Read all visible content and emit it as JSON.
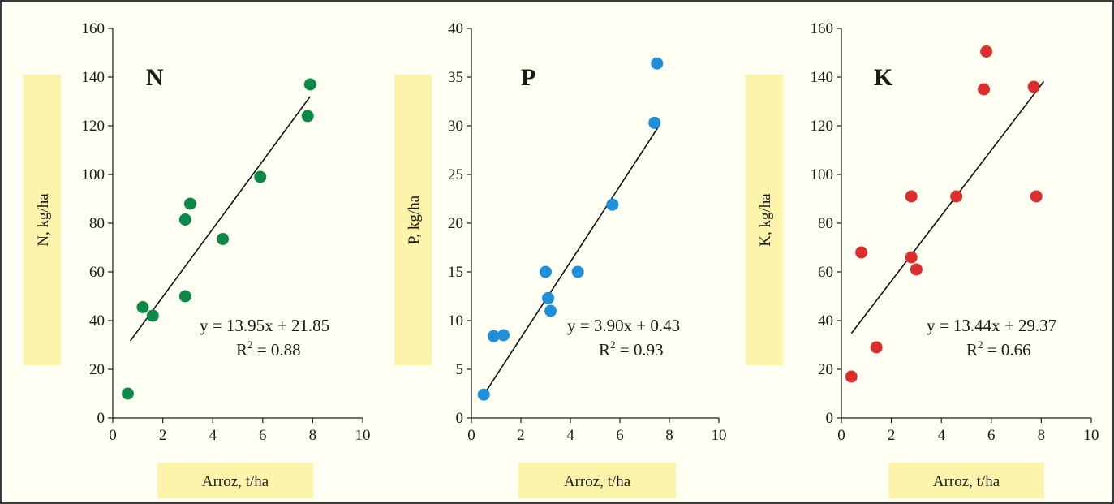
{
  "chart_data": [
    {
      "type": "scatter",
      "letter": "N",
      "xlabel": "Arroz, t/ha",
      "ylabel": "N, kg/ha",
      "xlim": [
        0,
        10
      ],
      "ylim": [
        0,
        160
      ],
      "xticks": [
        "0",
        "2",
        "4",
        "6",
        "8",
        "10"
      ],
      "yticks": [
        "0",
        "20",
        "40",
        "60",
        "80",
        "100",
        "120",
        "140",
        "160"
      ],
      "color": "#0a8a46",
      "points": [
        {
          "x": 0.6,
          "y": 10
        },
        {
          "x": 1.2,
          "y": 45.5
        },
        {
          "x": 1.6,
          "y": 42
        },
        {
          "x": 2.9,
          "y": 81.5
        },
        {
          "x": 3.1,
          "y": 88
        },
        {
          "x": 2.9,
          "y": 50
        },
        {
          "x": 4.4,
          "y": 73.5
        },
        {
          "x": 5.9,
          "y": 99
        },
        {
          "x": 7.8,
          "y": 124
        },
        {
          "x": 7.9,
          "y": 137
        }
      ],
      "trendline": {
        "slope": 13.95,
        "intercept": 21.85,
        "x_range": [
          0.7,
          7.9
        ]
      },
      "equation": "y = 13.95x + 21.85",
      "r2_prefix": "R",
      "r2_exp": "2",
      "r2_suffix": " = 0.88"
    },
    {
      "type": "scatter",
      "letter": "P",
      "xlabel": "Arroz, t/ha",
      "ylabel": "P, kg/ha",
      "xlim": [
        0,
        10
      ],
      "ylim": [
        0,
        40
      ],
      "xticks": [
        "0",
        "2",
        "4",
        "6",
        "8",
        "10"
      ],
      "yticks": [
        "0",
        "5",
        "10",
        "15",
        "20",
        "25",
        "30",
        "35",
        "40"
      ],
      "color": "#1e8fd8",
      "points": [
        {
          "x": 0.5,
          "y": 2.4
        },
        {
          "x": 0.9,
          "y": 8.4
        },
        {
          "x": 1.3,
          "y": 8.5
        },
        {
          "x": 3.0,
          "y": 15
        },
        {
          "x": 3.1,
          "y": 12.3
        },
        {
          "x": 3.2,
          "y": 11
        },
        {
          "x": 4.3,
          "y": 15
        },
        {
          "x": 5.7,
          "y": 21.9
        },
        {
          "x": 7.4,
          "y": 30.3
        },
        {
          "x": 7.5,
          "y": 36.4
        }
      ],
      "trendline": {
        "slope": 3.9,
        "intercept": 0.43,
        "x_range": [
          0.5,
          7.6
        ]
      },
      "equation": "y = 3.90x + 0.43",
      "r2_prefix": "R",
      "r2_exp": "2",
      "r2_suffix": " = 0.93"
    },
    {
      "type": "scatter",
      "letter": "K",
      "xlabel": "Arroz, t/ha",
      "ylabel": "K, kg/ha",
      "xlim": [
        0,
        10
      ],
      "ylim": [
        0,
        160
      ],
      "xticks": [
        "0",
        "2",
        "4",
        "6",
        "8",
        "10"
      ],
      "yticks": [
        "0",
        "20",
        "40",
        "60",
        "80",
        "100",
        "120",
        "140",
        "160"
      ],
      "color": "#dc2e2c",
      "points": [
        {
          "x": 0.4,
          "y": 17
        },
        {
          "x": 0.8,
          "y": 68
        },
        {
          "x": 1.4,
          "y": 29
        },
        {
          "x": 2.8,
          "y": 91
        },
        {
          "x": 2.8,
          "y": 66
        },
        {
          "x": 3.0,
          "y": 61
        },
        {
          "x": 4.6,
          "y": 91
        },
        {
          "x": 5.8,
          "y": 150.5
        },
        {
          "x": 5.7,
          "y": 135
        },
        {
          "x": 7.7,
          "y": 136
        },
        {
          "x": 7.8,
          "y": 91
        }
      ],
      "trendline": {
        "slope": 13.44,
        "intercept": 29.37,
        "x_range": [
          0.4,
          8.1
        ]
      },
      "equation": "y = 13.44x + 29.37",
      "r2_prefix": "R",
      "r2_exp": "2",
      "r2_suffix": " = 0.66"
    }
  ],
  "colors": {
    "background": "#fefef3",
    "label_box": "#fbf4aa",
    "axis": "#1a1a1a"
  }
}
